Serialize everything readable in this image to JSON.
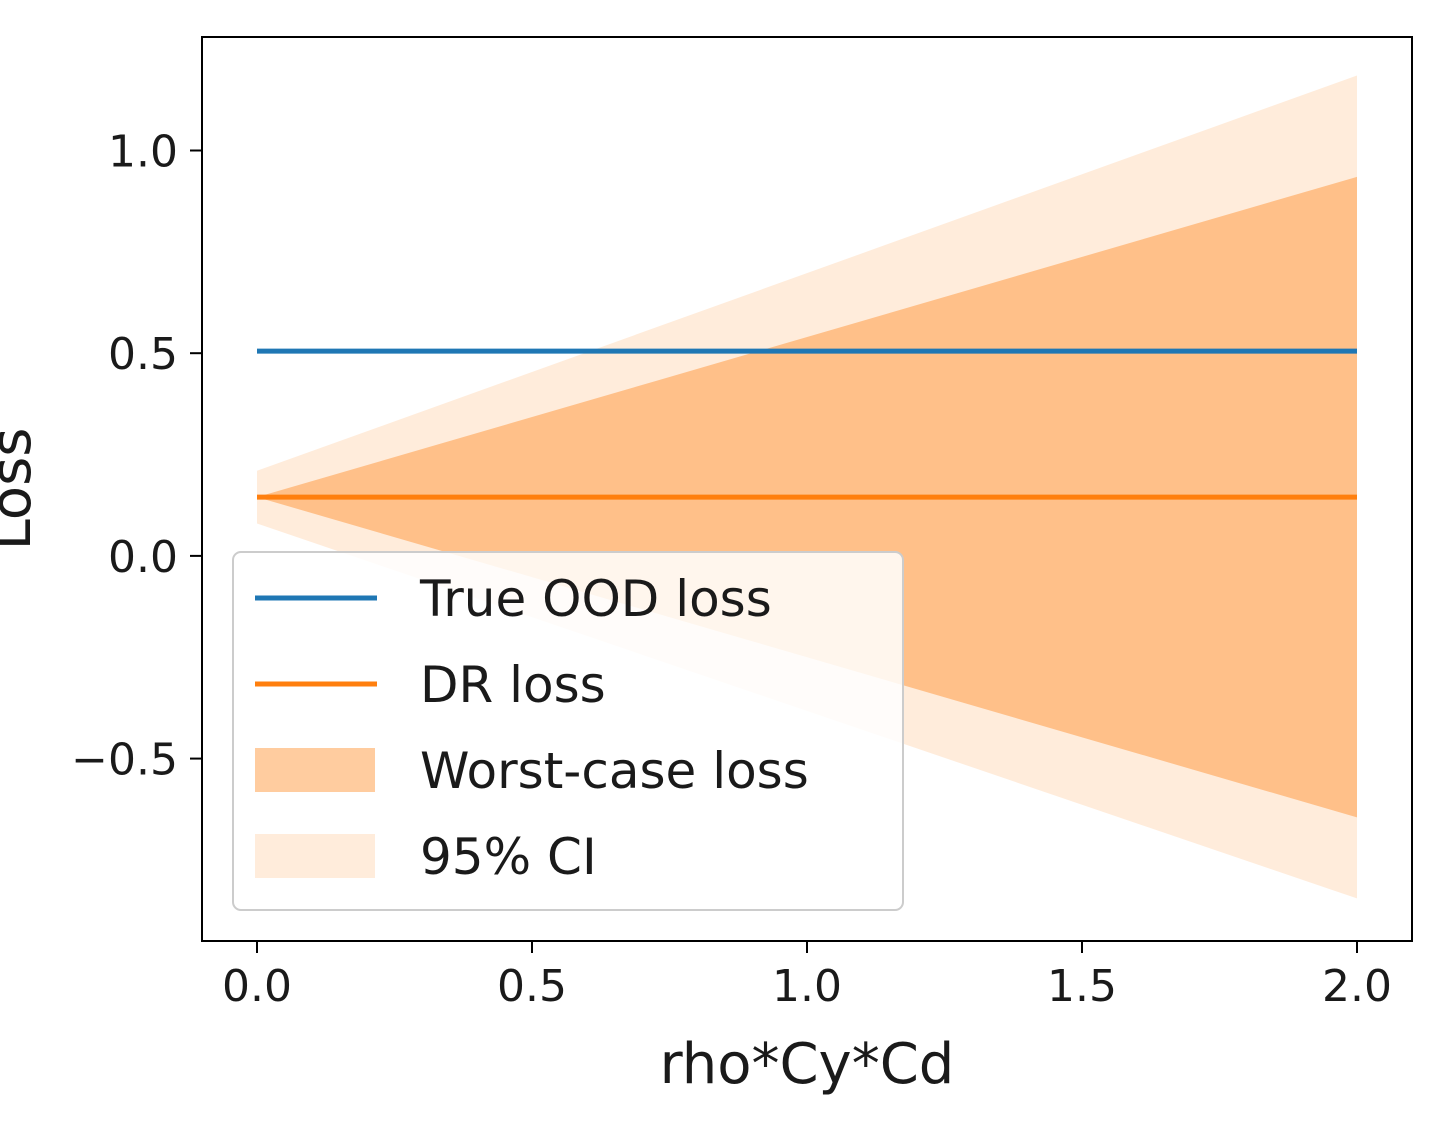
{
  "chart_data": {
    "type": "line",
    "title": "",
    "xlabel": "rho*Cy*Cd",
    "ylabel": "Loss",
    "xlim": [
      -0.1,
      2.1
    ],
    "ylim": [
      -0.95,
      1.28
    ],
    "grid": false,
    "legend_position": "lower-left",
    "x_ticks": [
      {
        "value": 0.0,
        "label": "0.0"
      },
      {
        "value": 0.5,
        "label": "0.5"
      },
      {
        "value": 1.0,
        "label": "1.0"
      },
      {
        "value": 1.5,
        "label": "1.5"
      },
      {
        "value": 2.0,
        "label": "2.0"
      }
    ],
    "y_ticks": [
      {
        "value": -0.5,
        "label": "−0.5"
      },
      {
        "value": 0.0,
        "label": "0.0"
      },
      {
        "value": 0.5,
        "label": "0.5"
      },
      {
        "value": 1.0,
        "label": "1.0"
      }
    ],
    "x": [
      0.0,
      2.0
    ],
    "series": [
      {
        "name": "True OOD loss",
        "kind": "line",
        "color": "#1f77b4",
        "y": [
          0.505,
          0.505
        ]
      },
      {
        "name": "DR loss",
        "kind": "line",
        "color": "#ff7f0e",
        "y": [
          0.145,
          0.145
        ]
      },
      {
        "name": "Worst-case loss",
        "kind": "band",
        "color": "#ff7f0e",
        "opacity": 0.4,
        "lower": [
          0.145,
          -0.645
        ],
        "upper": [
          0.145,
          0.935
        ]
      },
      {
        "name": "95% CI",
        "kind": "band",
        "color": "#ff7f0e",
        "opacity": 0.15,
        "lower": [
          0.08,
          -0.845
        ],
        "upper": [
          0.21,
          1.185
        ]
      }
    ]
  }
}
